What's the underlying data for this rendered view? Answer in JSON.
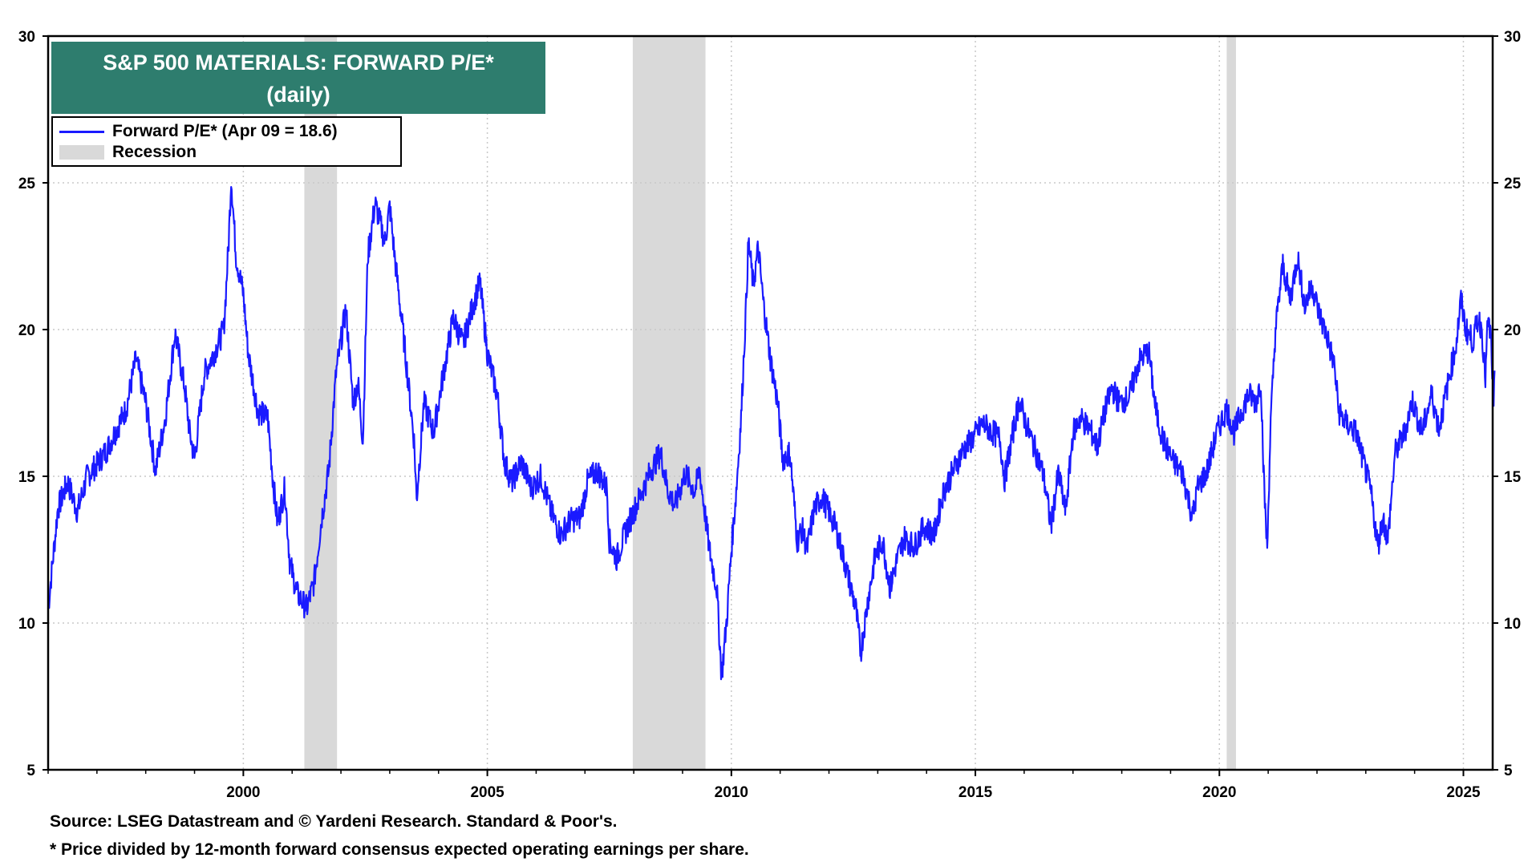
{
  "chart_data": {
    "type": "line",
    "title": "S&P 500 MATERIALS: FORWARD P/E*",
    "subtitle": "(daily)",
    "xlabel": "",
    "ylabel": "",
    "xlim": [
      1996.0,
      2025.6
    ],
    "ylim": [
      5,
      30
    ],
    "x_ticks": [
      2000,
      2005,
      2010,
      2015,
      2020,
      2025
    ],
    "y_ticks": [
      5,
      10,
      15,
      20,
      25,
      30
    ],
    "grid": true,
    "legend_position": "top-left",
    "series": [
      {
        "name": "Forward P/E* (Apr 09 = 18.6)",
        "color": "#1a1aff",
        "points": [
          [
            1996.0,
            10.5
          ],
          [
            1996.2,
            13.9
          ],
          [
            1996.4,
            14.8
          ],
          [
            1996.6,
            13.8
          ],
          [
            1996.8,
            15.0
          ],
          [
            1997.0,
            15.4
          ],
          [
            1997.2,
            15.9
          ],
          [
            1997.4,
            16.6
          ],
          [
            1997.6,
            17.3
          ],
          [
            1997.8,
            19.0
          ],
          [
            1998.0,
            17.5
          ],
          [
            1998.2,
            15.2
          ],
          [
            1998.4,
            17.0
          ],
          [
            1998.6,
            19.9
          ],
          [
            1998.8,
            18.0
          ],
          [
            1998.9,
            16.5
          ],
          [
            1999.0,
            15.6
          ],
          [
            1999.2,
            18.5
          ],
          [
            1999.4,
            19.2
          ],
          [
            1999.6,
            20.0
          ],
          [
            1999.7,
            23.0
          ],
          [
            1999.75,
            25.2
          ],
          [
            1999.85,
            22.5
          ],
          [
            2000.0,
            21.2
          ],
          [
            2000.1,
            19.2
          ],
          [
            2000.3,
            17.2
          ],
          [
            2000.5,
            17.0
          ],
          [
            2000.6,
            15.0
          ],
          [
            2000.7,
            13.4
          ],
          [
            2000.85,
            14.6
          ],
          [
            2000.95,
            12.1
          ],
          [
            2001.1,
            11.0
          ],
          [
            2001.3,
            10.5
          ],
          [
            2001.45,
            11.4
          ],
          [
            2001.6,
            13.5
          ],
          [
            2001.75,
            15.2
          ],
          [
            2001.9,
            18.5
          ],
          [
            2002.1,
            20.7
          ],
          [
            2002.25,
            17.5
          ],
          [
            2002.35,
            18.2
          ],
          [
            2002.45,
            16.2
          ],
          [
            2002.55,
            22.5
          ],
          [
            2002.7,
            24.3
          ],
          [
            2002.9,
            23.0
          ],
          [
            2003.0,
            24.2
          ],
          [
            2003.1,
            22.5
          ],
          [
            2003.3,
            19.5
          ],
          [
            2003.5,
            16.2
          ],
          [
            2003.55,
            14.2
          ],
          [
            2003.7,
            17.5
          ],
          [
            2003.9,
            16.5
          ],
          [
            2004.1,
            18.5
          ],
          [
            2004.3,
            20.4
          ],
          [
            2004.5,
            19.5
          ],
          [
            2004.7,
            20.8
          ],
          [
            2004.85,
            21.6
          ],
          [
            2005.0,
            19.2
          ],
          [
            2005.2,
            17.8
          ],
          [
            2005.35,
            15.5
          ],
          [
            2005.5,
            14.8
          ],
          [
            2005.7,
            15.5
          ],
          [
            2005.9,
            14.6
          ],
          [
            2006.1,
            15.0
          ],
          [
            2006.3,
            13.8
          ],
          [
            2006.5,
            13.0
          ],
          [
            2006.7,
            13.5
          ],
          [
            2006.9,
            13.6
          ],
          [
            2007.05,
            14.8
          ],
          [
            2007.25,
            15.2
          ],
          [
            2007.45,
            14.6
          ],
          [
            2007.5,
            12.8
          ],
          [
            2007.65,
            12.2
          ],
          [
            2007.85,
            13.2
          ],
          [
            2008.1,
            14.2
          ],
          [
            2008.35,
            15.2
          ],
          [
            2008.55,
            15.8
          ],
          [
            2008.7,
            14.5
          ],
          [
            2008.85,
            14.0
          ],
          [
            2009.05,
            15.1
          ],
          [
            2009.25,
            14.5
          ],
          [
            2009.35,
            15.2
          ],
          [
            2009.55,
            12.5
          ],
          [
            2009.7,
            11.2
          ],
          [
            2009.8,
            8.2
          ],
          [
            2009.9,
            10.0
          ],
          [
            2010.0,
            12.5
          ],
          [
            2010.1,
            14.5
          ],
          [
            2010.2,
            17.0
          ],
          [
            2010.3,
            20.8
          ],
          [
            2010.35,
            23.0
          ],
          [
            2010.45,
            21.5
          ],
          [
            2010.55,
            22.8
          ],
          [
            2010.65,
            21.0
          ],
          [
            2010.8,
            19.0
          ],
          [
            2010.95,
            17.5
          ],
          [
            2011.05,
            15.6
          ],
          [
            2011.2,
            15.8
          ],
          [
            2011.35,
            12.8
          ],
          [
            2011.45,
            13.2
          ],
          [
            2011.55,
            12.5
          ],
          [
            2011.7,
            13.9
          ],
          [
            2011.85,
            14.3
          ],
          [
            2012.0,
            13.8
          ],
          [
            2012.15,
            13.2
          ],
          [
            2012.3,
            12.2
          ],
          [
            2012.45,
            11.2
          ],
          [
            2012.55,
            10.5
          ],
          [
            2012.65,
            9.0
          ],
          [
            2012.8,
            10.8
          ],
          [
            2012.95,
            12.3
          ],
          [
            2013.1,
            12.8
          ],
          [
            2013.25,
            11.2
          ],
          [
            2013.4,
            12.2
          ],
          [
            2013.55,
            12.9
          ],
          [
            2013.75,
            12.6
          ],
          [
            2013.95,
            13.3
          ],
          [
            2014.15,
            13.0
          ],
          [
            2014.35,
            14.5
          ],
          [
            2014.55,
            15.2
          ],
          [
            2014.75,
            15.9
          ],
          [
            2014.95,
            16.3
          ],
          [
            2015.15,
            16.8
          ],
          [
            2015.35,
            16.5
          ],
          [
            2015.5,
            16.3
          ],
          [
            2015.6,
            14.9
          ],
          [
            2015.75,
            16.3
          ],
          [
            2015.9,
            17.6
          ],
          [
            2016.05,
            16.7
          ],
          [
            2016.25,
            15.8
          ],
          [
            2016.4,
            15.0
          ],
          [
            2016.55,
            13.3
          ],
          [
            2016.7,
            15.1
          ],
          [
            2016.85,
            13.8
          ],
          [
            2017.0,
            16.5
          ],
          [
            2017.15,
            17.0
          ],
          [
            2017.35,
            16.6
          ],
          [
            2017.5,
            16.0
          ],
          [
            2017.65,
            17.2
          ],
          [
            2017.8,
            18.0
          ],
          [
            2017.95,
            17.5
          ],
          [
            2018.15,
            17.7
          ],
          [
            2018.35,
            18.9
          ],
          [
            2018.55,
            19.3
          ],
          [
            2018.7,
            17.2
          ],
          [
            2018.85,
            16.2
          ],
          [
            2019.05,
            15.5
          ],
          [
            2019.25,
            15.1
          ],
          [
            2019.45,
            13.6
          ],
          [
            2019.55,
            14.6
          ],
          [
            2019.75,
            15.2
          ],
          [
            2019.95,
            16.5
          ],
          [
            2020.15,
            17.3
          ],
          [
            2020.3,
            16.5
          ],
          [
            2020.45,
            17.2
          ],
          [
            2020.6,
            17.8
          ],
          [
            2020.75,
            17.5
          ],
          [
            2020.85,
            18.3
          ],
          [
            2020.92,
            14.5
          ],
          [
            2020.98,
            12.5
          ],
          [
            2021.05,
            16.8
          ],
          [
            2021.15,
            20.0
          ],
          [
            2021.3,
            22.2
          ],
          [
            2021.45,
            21.0
          ],
          [
            2021.6,
            22.5
          ],
          [
            2021.75,
            20.8
          ],
          [
            2021.9,
            21.5
          ],
          [
            2022.05,
            20.5
          ],
          [
            2022.2,
            19.8
          ],
          [
            2022.35,
            18.8
          ],
          [
            2022.45,
            17.2
          ],
          [
            2022.6,
            16.8
          ],
          [
            2022.8,
            16.5
          ],
          [
            2022.95,
            15.5
          ],
          [
            2023.1,
            14.5
          ],
          [
            2023.25,
            12.6
          ],
          [
            2023.35,
            13.6
          ],
          [
            2023.45,
            12.8
          ],
          [
            2023.6,
            15.8
          ],
          [
            2023.8,
            16.5
          ],
          [
            2023.95,
            17.6
          ],
          [
            2024.15,
            16.5
          ],
          [
            2024.35,
            17.8
          ],
          [
            2024.5,
            16.6
          ],
          [
            2024.7,
            18.3
          ],
          [
            2024.85,
            19.5
          ],
          [
            2024.95,
            21.0
          ],
          [
            2025.05,
            20.0
          ],
          [
            2025.2,
            19.6
          ],
          [
            2025.3,
            20.4
          ],
          [
            2025.38,
            20.0
          ],
          [
            2025.45,
            18.3
          ],
          [
            2025.5,
            20.3
          ],
          [
            2025.56,
            19.8
          ],
          [
            2025.6,
            18.2
          ],
          [
            2025.62,
            17.1
          ],
          [
            2025.64,
            18.6
          ]
        ]
      }
    ],
    "recessions": [
      {
        "name": "Recession",
        "start": 2001.25,
        "end": 2001.92
      },
      {
        "name": "Recession",
        "start": 2007.98,
        "end": 2009.47
      },
      {
        "name": "Recession",
        "start": 2020.15,
        "end": 2020.34
      }
    ],
    "legend": [
      {
        "label": "Forward P/E* (Apr 09 = 18.6)",
        "kind": "line",
        "color": "#1a1aff"
      },
      {
        "label": "Recession",
        "kind": "box",
        "color": "#d9d9d9"
      }
    ],
    "colors": {
      "line": "#1a1aff",
      "recession": "#d9d9d9",
      "title_bg": "#2e7d6e",
      "title_text": "#ffffff",
      "grid": "#c8c8c8"
    },
    "footer": {
      "source": "Source: LSEG Datastream and © Yardeni Research. Standard & Poor's.",
      "note": "* Price divided by 12-month forward consensus expected operating earnings per share."
    }
  }
}
